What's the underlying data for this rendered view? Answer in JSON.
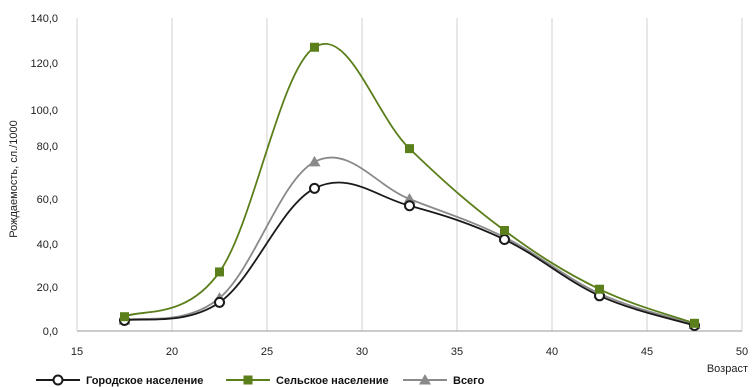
{
  "chart_data": {
    "type": "line",
    "xlabel": "Возраст",
    "ylabel": "Рождаемость, сл./1000",
    "xlim": [
      15,
      50
    ],
    "xticks": [
      15,
      20,
      25,
      30,
      35,
      40,
      45,
      50
    ],
    "y_tick_labels": [
      "0,0",
      "20,0",
      "40,0",
      "60,0",
      "80,0",
      "100,0",
      "120,0",
      "140,0"
    ],
    "grid": "vertical",
    "legend_position": "bottom",
    "series": [
      {
        "name": "Городское население",
        "color": "#1a1a1a",
        "marker": "circle",
        "points": [
          [
            17.5,
            4.8
          ],
          [
            22.5,
            13.0
          ],
          [
            27.5,
            64.0
          ],
          [
            32.5,
            57.0
          ],
          [
            37.5,
            42.0
          ],
          [
            42.5,
            16.0
          ],
          [
            47.5,
            2.5
          ]
        ]
      },
      {
        "name": "Сельское население",
        "color": "#5b7f1b",
        "marker": "square",
        "points": [
          [
            17.5,
            6.5
          ],
          [
            22.5,
            27.0
          ],
          [
            27.5,
            127.0
          ],
          [
            32.5,
            79.0
          ],
          [
            37.5,
            46.0
          ],
          [
            42.5,
            19.0
          ],
          [
            47.5,
            3.5
          ]
        ]
      },
      {
        "name": "Всего",
        "color": "#8a8a8a",
        "marker": "triangle",
        "points": [
          [
            17.5,
            5.0
          ],
          [
            22.5,
            15.0
          ],
          [
            27.5,
            74.0
          ],
          [
            32.5,
            60.0
          ],
          [
            37.5,
            43.0
          ],
          [
            42.5,
            17.0
          ],
          [
            47.5,
            3.0
          ]
        ]
      }
    ]
  }
}
